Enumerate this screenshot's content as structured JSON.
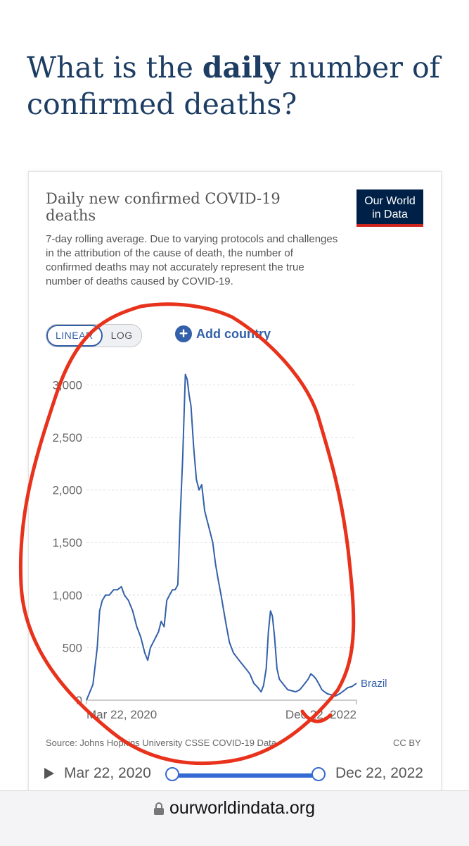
{
  "page": {
    "heading_pre": "What is the ",
    "heading_bold": "daily",
    "heading_post": " number of confirmed deaths?"
  },
  "chart_card": {
    "title": "Daily new confirmed COVID-19 deaths",
    "subtitle": "7-day rolling average. Due to varying protocols and challenges in the attribution of the cause of death, the number of confirmed deaths may not accurately represent the true number of deaths caused by COVID-19.",
    "logo_line1": "Our World",
    "logo_line2": "in Data",
    "scale_linear": "LINEAR",
    "scale_log": "LOG",
    "add_country": "Add country",
    "source": "Source: Johns Hopkins University CSSE COVID-19 Data",
    "license": "CC BY"
  },
  "timeline": {
    "start": "Mar 22, 2020",
    "end": "Dec 22, 2022"
  },
  "browser": {
    "url": "ourworldindata.org"
  },
  "colors": {
    "line": "#3360a9",
    "annotation": "#e8321c",
    "title": "#1d3d63"
  },
  "chart_data": {
    "type": "line",
    "title": "Daily new confirmed COVID-19 deaths",
    "subtitle": "7-day rolling average",
    "x_start": "Mar 22, 2020",
    "x_end": "Dec 22, 2022",
    "x_tick_labels": [
      "Mar 22, 2020",
      "Dec 22, 2022"
    ],
    "y_ticks": [
      0,
      500,
      1000,
      1500,
      2000,
      2500,
      3000
    ],
    "y_tick_labels": [
      "0",
      "500",
      "1,000",
      "1,500",
      "2,000",
      "2,500",
      "3,000"
    ],
    "ylim": [
      0,
      3150
    ],
    "grid": true,
    "series": [
      {
        "name": "Brazil",
        "x": [
          "2020-03-22",
          "2020-04-15",
          "2020-05-01",
          "2020-05-10",
          "2020-05-20",
          "2020-06-01",
          "2020-06-15",
          "2020-07-01",
          "2020-07-15",
          "2020-07-30",
          "2020-08-10",
          "2020-08-25",
          "2020-09-10",
          "2020-09-25",
          "2020-10-10",
          "2020-10-25",
          "2020-11-05",
          "2020-11-15",
          "2020-11-25",
          "2020-12-05",
          "2020-12-15",
          "2020-12-25",
          "2021-01-05",
          "2021-01-15",
          "2021-01-25",
          "2021-02-05",
          "2021-02-15",
          "2021-02-25",
          "2021-03-05",
          "2021-03-15",
          "2021-03-25",
          "2021-04-01",
          "2021-04-08",
          "2021-04-15",
          "2021-04-25",
          "2021-05-05",
          "2021-05-15",
          "2021-05-25",
          "2021-06-05",
          "2021-06-15",
          "2021-06-25",
          "2021-07-05",
          "2021-07-15",
          "2021-07-25",
          "2021-08-05",
          "2021-08-15",
          "2021-08-25",
          "2021-09-05",
          "2021-09-20",
          "2021-10-05",
          "2021-10-20",
          "2021-11-05",
          "2021-11-20",
          "2021-12-05",
          "2021-12-20",
          "2022-01-01",
          "2022-01-10",
          "2022-01-20",
          "2022-01-28",
          "2022-02-05",
          "2022-02-12",
          "2022-02-20",
          "2022-03-01",
          "2022-03-10",
          "2022-03-25",
          "2022-04-10",
          "2022-04-25",
          "2022-05-10",
          "2022-05-25",
          "2022-06-10",
          "2022-06-25",
          "2022-07-05",
          "2022-07-15",
          "2022-07-25",
          "2022-08-05",
          "2022-08-15",
          "2022-08-25",
          "2022-09-05",
          "2022-09-20",
          "2022-10-05",
          "2022-10-20",
          "2022-11-05",
          "2022-11-20",
          "2022-12-05",
          "2022-12-22"
        ],
        "values": [
          0,
          150,
          500,
          850,
          950,
          1000,
          1000,
          1050,
          1050,
          1080,
          1000,
          950,
          850,
          700,
          600,
          450,
          380,
          500,
          550,
          600,
          650,
          750,
          700,
          950,
          1000,
          1050,
          1050,
          1100,
          1700,
          2300,
          3100,
          3050,
          2900,
          2800,
          2400,
          2100,
          2000,
          2050,
          1800,
          1700,
          1600,
          1500,
          1300,
          1150,
          1000,
          850,
          700,
          550,
          450,
          400,
          350,
          300,
          250,
          160,
          120,
          80,
          140,
          300,
          650,
          850,
          800,
          600,
          300,
          200,
          150,
          100,
          90,
          80,
          100,
          150,
          200,
          250,
          230,
          200,
          150,
          100,
          80,
          60,
          50,
          40,
          60,
          90,
          120,
          130,
          160
        ]
      }
    ]
  }
}
